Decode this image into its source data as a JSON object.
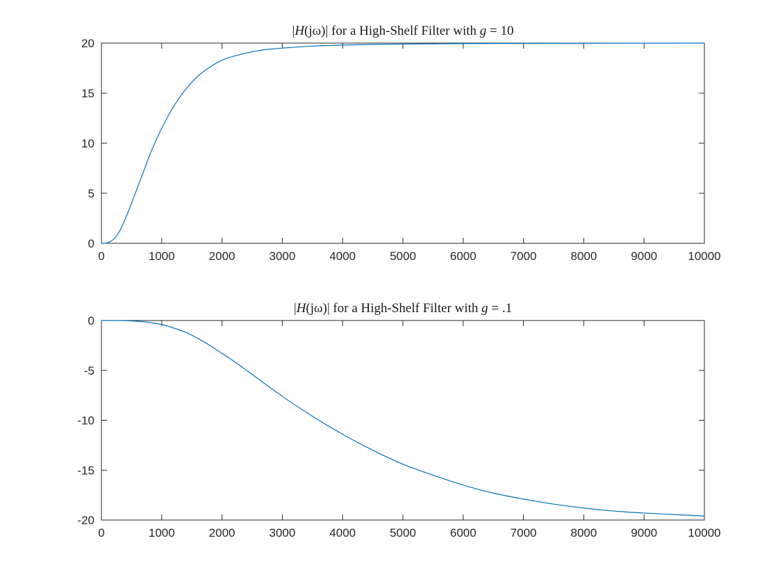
{
  "chart_data": [
    {
      "type": "line",
      "title": "|H(jω)| for a High-Shelf Filter with g = 10",
      "title_parts": {
        "prefix": "|",
        "H": "H",
        "jw": "(jω)",
        "suffix": "| for a High-Shelf Filter with ",
        "g": "g",
        "eq": " = ",
        "value": "10"
      },
      "xlabel": "",
      "ylabel": "",
      "xlim": [
        0,
        10000
      ],
      "ylim": [
        0,
        20
      ],
      "xticks": [
        0,
        1000,
        2000,
        3000,
        4000,
        5000,
        6000,
        7000,
        8000,
        9000,
        10000
      ],
      "yticks": [
        0,
        5,
        10,
        15,
        20
      ],
      "xtick_labels": [
        "0",
        "1000",
        "2000",
        "3000",
        "4000",
        "5000",
        "6000",
        "7000",
        "8000",
        "9000",
        "10000"
      ],
      "ytick_labels": [
        "0",
        "5",
        "10",
        "15",
        "20"
      ],
      "grid": false,
      "series": [
        {
          "color": "#0072BD",
          "x": [
            0,
            100,
            200,
            300,
            400,
            500,
            600,
            700,
            800,
            900,
            1000,
            1200,
            1400,
            1600,
            1800,
            2000,
            2200,
            2400,
            2600,
            2800,
            3000,
            3500,
            4000,
            4500,
            5000,
            6000,
            7000,
            8000,
            9000,
            10000
          ],
          "y": [
            0,
            0.05,
            0.4,
            1.2,
            2.5,
            4.0,
            5.6,
            7.2,
            8.8,
            10.2,
            11.5,
            13.7,
            15.4,
            16.7,
            17.6,
            18.3,
            18.7,
            19.0,
            19.25,
            19.4,
            19.5,
            19.7,
            19.8,
            19.87,
            19.9,
            19.95,
            19.97,
            19.98,
            19.99,
            20.0
          ]
        }
      ]
    },
    {
      "type": "line",
      "title": "|H(jω)| for a High-Shelf Filter with g = .1",
      "title_parts": {
        "prefix": "|",
        "H": "H",
        "jw": "(jω)",
        "suffix": "| for a High-Shelf Filter with ",
        "g": "g",
        "eq": " = ",
        "value": ".1"
      },
      "xlabel": "",
      "ylabel": "",
      "xlim": [
        0,
        10000
      ],
      "ylim": [
        -20,
        0
      ],
      "xticks": [
        0,
        1000,
        2000,
        3000,
        4000,
        5000,
        6000,
        7000,
        8000,
        9000,
        10000
      ],
      "yticks": [
        -20,
        -15,
        -10,
        -5,
        0
      ],
      "xtick_labels": [
        "0",
        "1000",
        "2000",
        "3000",
        "4000",
        "5000",
        "6000",
        "7000",
        "8000",
        "9000",
        "10000"
      ],
      "ytick_labels": [
        "-20",
        "-15",
        "-10",
        "-5",
        "0"
      ],
      "grid": false,
      "series": [
        {
          "color": "#0072BD",
          "x": [
            0,
            200,
            400,
            600,
            800,
            1000,
            1200,
            1400,
            1600,
            1800,
            2000,
            2200,
            2500,
            3000,
            3500,
            4000,
            4500,
            5000,
            5500,
            6000,
            6500,
            7000,
            7500,
            8000,
            8500,
            9000,
            9500,
            10000
          ],
          "y": [
            0,
            0,
            -0.02,
            -0.08,
            -0.2,
            -0.4,
            -0.75,
            -1.2,
            -1.8,
            -2.5,
            -3.3,
            -4.1,
            -5.4,
            -7.6,
            -9.6,
            -11.4,
            -13.0,
            -14.4,
            -15.5,
            -16.5,
            -17.3,
            -17.9,
            -18.4,
            -18.8,
            -19.1,
            -19.3,
            -19.45,
            -19.6
          ]
        }
      ]
    }
  ]
}
